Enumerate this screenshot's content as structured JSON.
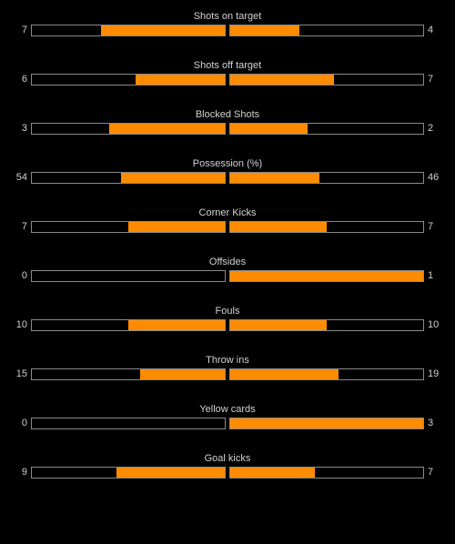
{
  "colors": {
    "background": "#000000",
    "bar_fill": "#ff8c00",
    "bar_border": "#8a8a8a",
    "text": "#cfcfcf"
  },
  "stats": [
    {
      "label": "Shots on target",
      "home": "7",
      "away": "4",
      "home_fill": 0.64,
      "away_fill": 0.36
    },
    {
      "label": "Shots off target",
      "home": "6",
      "away": "7",
      "home_fill": 0.46,
      "away_fill": 0.54
    },
    {
      "label": "Blocked Shots",
      "home": "3",
      "away": "2",
      "home_fill": 0.6,
      "away_fill": 0.4
    },
    {
      "label": "Possession (%)",
      "home": "54",
      "away": "46",
      "home_fill": 0.54,
      "away_fill": 0.46
    },
    {
      "label": "Corner Kicks",
      "home": "7",
      "away": "7",
      "home_fill": 0.5,
      "away_fill": 0.5
    },
    {
      "label": "Offsides",
      "home": "0",
      "away": "1",
      "home_fill": 0.0,
      "away_fill": 1.0
    },
    {
      "label": "Fouls",
      "home": "10",
      "away": "10",
      "home_fill": 0.5,
      "away_fill": 0.5
    },
    {
      "label": "Throw ins",
      "home": "15",
      "away": "19",
      "home_fill": 0.44,
      "away_fill": 0.56
    },
    {
      "label": "Yellow cards",
      "home": "0",
      "away": "3",
      "home_fill": 0.0,
      "away_fill": 1.0
    },
    {
      "label": "Goal kicks",
      "home": "9",
      "away": "7",
      "home_fill": 0.56,
      "away_fill": 0.44
    }
  ]
}
